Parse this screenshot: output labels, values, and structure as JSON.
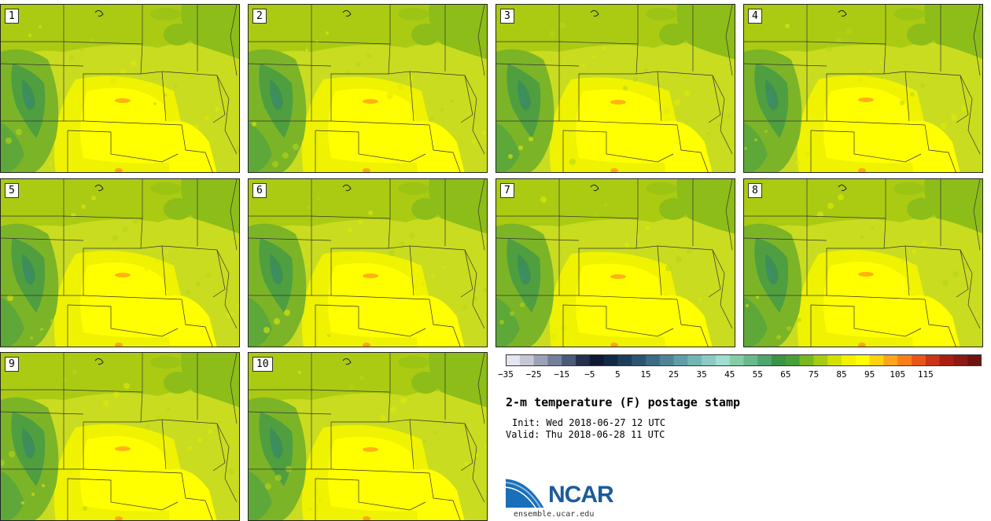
{
  "members": [
    "1",
    "2",
    "3",
    "4",
    "5",
    "6",
    "7",
    "8",
    "9",
    "10"
  ],
  "legend": {
    "title": "2-m temperature (F) postage stamp",
    "init": "Init: Wed 2018-06-27 12 UTC",
    "valid": "Valid: Thu 2018-06-28 11 UTC",
    "tick_labels": [
      "−35",
      "−25",
      "−15",
      "−5",
      "5",
      "15",
      "25",
      "35",
      "45",
      "55",
      "65",
      "75",
      "85",
      "95",
      "105",
      "115"
    ],
    "colors": [
      "#e3e6ee",
      "#c5c8d4",
      "#9ba1b6",
      "#73809b",
      "#4c5a7a",
      "#26304f",
      "#0d1a33",
      "#102a45",
      "#1d3e5a",
      "#2b5570",
      "#3c6b85",
      "#4f8497",
      "#5f9ea8",
      "#72b5b5",
      "#8bcbc3",
      "#9fded0",
      "#84cda6",
      "#6ab98c",
      "#4fa56e",
      "#3b9346",
      "#4aa038",
      "#79b820",
      "#a8cc10",
      "#d3e000",
      "#f2f200",
      "#ffff00",
      "#ffd10f",
      "#ffa519",
      "#fb7e1a",
      "#e9561a",
      "#cb3418",
      "#aa1f14",
      "#8c1a14",
      "#6e1410"
    ]
  },
  "logo": {
    "text": "NCAR",
    "url": "ensemble.ucar.edu"
  }
}
